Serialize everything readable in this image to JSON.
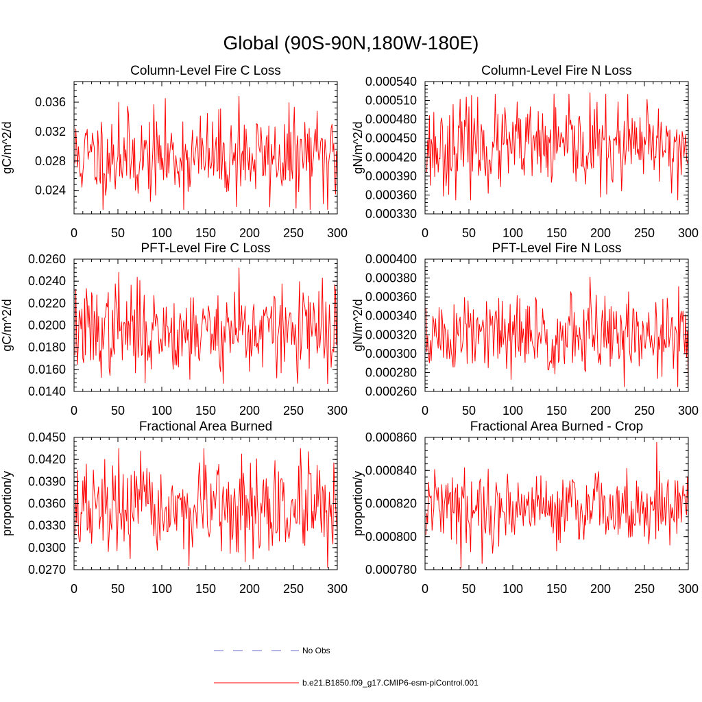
{
  "page_title": "Global (90S-90N,180W-180E)",
  "legend": {
    "items": [
      {
        "label": "No Obs",
        "color": "#6a6acd",
        "style": "dashed"
      },
      {
        "label": "b.e21.B1850.f09_g17.CMIP6-esm-piControl.001",
        "color": "#ff0000",
        "style": "solid"
      }
    ]
  },
  "chart_data": [
    {
      "type": "line",
      "title": "Column-Level Fire C Loss",
      "xlabel": "",
      "ylabel": "gC/m^2/d",
      "xlim": [
        0,
        300
      ],
      "ylim": [
        0.0208,
        0.0388
      ],
      "xticks": [
        0,
        50,
        100,
        150,
        200,
        250,
        300
      ],
      "xtick_labels": [
        "0",
        "50",
        "100",
        "150",
        "200",
        "250",
        "300"
      ],
      "yticks": [
        0.024,
        0.028,
        0.032,
        0.036
      ],
      "ytick_labels": [
        "0.024",
        "0.028",
        "0.032",
        "0.036"
      ],
      "series": [
        {
          "name": "b.e21.B1850.f09_g17.CMIP6-esm-piControl.001",
          "color": "#ff0000",
          "length": 300,
          "seed": 11,
          "mean": 0.0285,
          "spread": 0.003,
          "min": 0.0214,
          "max": 0.0365,
          "spikes": [
            [
              50,
              0.036
            ],
            [
              187,
              0.0368
            ],
            [
              288,
              0.0214
            ]
          ]
        }
      ]
    },
    {
      "type": "line",
      "title": "Column-Level Fire N Loss",
      "xlabel": "",
      "ylabel": "gN/m^2/d",
      "xlim": [
        0,
        300
      ],
      "ylim": [
        0.00033,
        0.00054
      ],
      "xticks": [
        0,
        50,
        100,
        150,
        200,
        250,
        300
      ],
      "xtick_labels": [
        "0",
        "50",
        "100",
        "150",
        "200",
        "250",
        "300"
      ],
      "yticks": [
        0.00033,
        0.00036,
        0.00039,
        0.00042,
        0.00045,
        0.00048,
        0.00051,
        0.00054
      ],
      "ytick_labels": [
        "0.000330",
        "0.000360",
        "0.000390",
        "0.000420",
        "0.000450",
        "0.000480",
        "0.000510",
        "0.000540"
      ],
      "series": [
        {
          "name": "b.e21.B1850.f09_g17.CMIP6-esm-piControl.001",
          "color": "#ff0000",
          "length": 300,
          "seed": 23,
          "mean": 0.000435,
          "spread": 3.5e-05,
          "min": 0.000352,
          "max": 0.00052,
          "spikes": [
            [
              52,
              0.000518
            ],
            [
              187,
              0.000522
            ],
            [
              287,
              0.000352
            ]
          ]
        }
      ]
    },
    {
      "type": "line",
      "title": "PFT-Level Fire C Loss",
      "xlabel": "",
      "ylabel": "gC/m^2/d",
      "xlim": [
        0,
        300
      ],
      "ylim": [
        0.014,
        0.026
      ],
      "xticks": [
        0,
        50,
        100,
        150,
        200,
        250,
        300
      ],
      "xtick_labels": [
        "0",
        "50",
        "100",
        "150",
        "200",
        "250",
        "300"
      ],
      "yticks": [
        0.014,
        0.016,
        0.018,
        0.02,
        0.022,
        0.024,
        0.026
      ],
      "ytick_labels": [
        "0.0140",
        "0.0160",
        "0.0180",
        "0.0200",
        "0.0220",
        "0.0240",
        "0.0260"
      ],
      "series": [
        {
          "name": "b.e21.B1850.f09_g17.CMIP6-esm-piControl.001",
          "color": "#ff0000",
          "length": 300,
          "seed": 37,
          "mean": 0.0195,
          "spread": 0.002,
          "min": 0.0146,
          "max": 0.025,
          "spikes": [
            [
              50,
              0.0248
            ],
            [
              187,
              0.0252
            ],
            [
              288,
              0.0147
            ]
          ]
        }
      ]
    },
    {
      "type": "line",
      "title": "PFT-Level Fire N Loss",
      "xlabel": "",
      "ylabel": "gN/m^2/d",
      "xlim": [
        0,
        300
      ],
      "ylim": [
        0.00026,
        0.0004
      ],
      "xticks": [
        0,
        50,
        100,
        150,
        200,
        250,
        300
      ],
      "xtick_labels": [
        "0",
        "50",
        "100",
        "150",
        "200",
        "250",
        "300"
      ],
      "yticks": [
        0.00026,
        0.00028,
        0.0003,
        0.00032,
        0.00034,
        0.00036,
        0.00038,
        0.0004
      ],
      "ytick_labels": [
        "0.000260",
        "0.000280",
        "0.000300",
        "0.000320",
        "0.000340",
        "0.000360",
        "0.000380",
        "0.000400"
      ],
      "series": [
        {
          "name": "b.e21.B1850.f09_g17.CMIP6-esm-piControl.001",
          "color": "#ff0000",
          "length": 300,
          "seed": 51,
          "mean": 0.000318,
          "spread": 2.2e-05,
          "min": 0.000265,
          "max": 0.00038,
          "spikes": [
            [
              187,
              0.000381
            ],
            [
              287,
              0.000265
            ]
          ]
        }
      ]
    },
    {
      "type": "line",
      "title": "Fractional Area Burned",
      "xlabel": "",
      "ylabel": "proportion/y",
      "xlim": [
        0,
        300
      ],
      "ylim": [
        0.027,
        0.045
      ],
      "xticks": [
        0,
        50,
        100,
        150,
        200,
        250,
        300
      ],
      "xtick_labels": [
        "0",
        "50",
        "100",
        "150",
        "200",
        "250",
        "300"
      ],
      "yticks": [
        0.027,
        0.03,
        0.033,
        0.036,
        0.039,
        0.042,
        0.045
      ],
      "ytick_labels": [
        "0.0270",
        "0.0300",
        "0.0330",
        "0.0360",
        "0.0390",
        "0.0420",
        "0.0450"
      ],
      "series": [
        {
          "name": "b.e21.B1850.f09_g17.CMIP6-esm-piControl.001",
          "color": "#ff0000",
          "length": 300,
          "seed": 67,
          "mean": 0.035,
          "spread": 0.0032,
          "min": 0.0275,
          "max": 0.0435,
          "spikes": [
            [
              50,
              0.0435
            ],
            [
              288,
              0.0273
            ]
          ]
        }
      ]
    },
    {
      "type": "line",
      "title": "Fractional Area Burned - Crop",
      "xlabel": "",
      "ylabel": "proportion/y",
      "xlim": [
        0,
        300
      ],
      "ylim": [
        0.00078,
        0.00086
      ],
      "xticks": [
        0,
        50,
        100,
        150,
        200,
        250,
        300
      ],
      "xtick_labels": [
        "0",
        "50",
        "100",
        "150",
        "200",
        "250",
        "300"
      ],
      "yticks": [
        0.00078,
        0.0008,
        0.00082,
        0.00084,
        0.00086
      ],
      "ytick_labels": [
        "0.000780",
        "0.000800",
        "0.000820",
        "0.000840",
        "0.000860"
      ],
      "series": [
        {
          "name": "b.e21.B1850.f09_g17.CMIP6-esm-piControl.001",
          "color": "#ff0000",
          "length": 300,
          "seed": 79,
          "mean": 0.000818,
          "spread": 1.1e-05,
          "min": 0.000781,
          "max": 0.000857,
          "spikes": [
            [
              40,
              0.000781
            ],
            [
              263,
              0.000857
            ]
          ]
        }
      ]
    }
  ]
}
